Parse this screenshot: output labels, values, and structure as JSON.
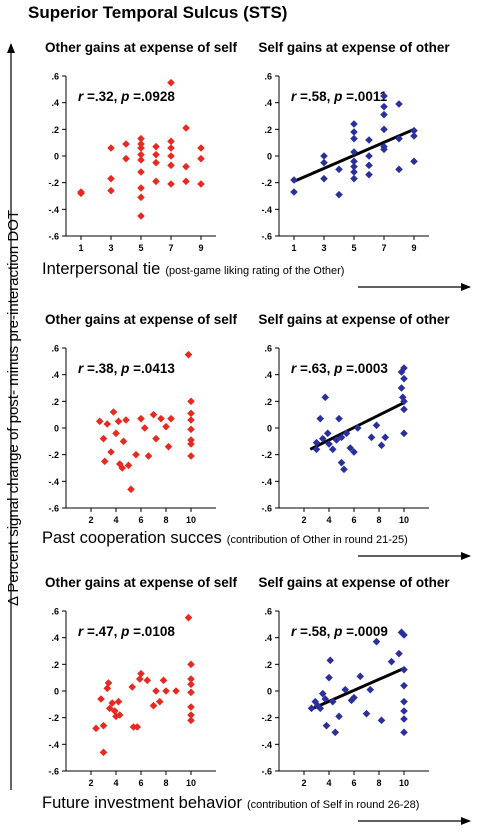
{
  "figure": {
    "title": "Superior Temporal Sulcus (STS)",
    "ylabel": "Δ Percent signal change of post- minus pre-interaction DOT",
    "colors": {
      "red": "#e8291f",
      "blue": "#2b2f9c",
      "axis": "#000000"
    }
  },
  "rows": [
    {
      "xlabel_main": "Interpersonal tie",
      "xlabel_note": "(post-game liking rating of the Other)"
    },
    {
      "xlabel_main": "Past cooperation succes",
      "xlabel_note": "(contribution of Other in round 21-25)"
    },
    {
      "xlabel_main": "Future investment behavior",
      "xlabel_note": "(contribution of Self in round 26-28)"
    }
  ],
  "chart_data": [
    {
      "type": "scatter",
      "title": "Other gains at expense of self",
      "stat_r": "r",
      "stat_rval": " =.32, ",
      "stat_p": "p",
      "stat_pval": " =.0928",
      "color": "#e8291f",
      "xlim": [
        0,
        10
      ],
      "ylim": [
        -0.6,
        0.6
      ],
      "xticks": [
        1,
        3,
        5,
        7,
        9
      ],
      "yticks": [
        -0.6,
        -0.4,
        -0.2,
        0,
        0.2,
        0.4,
        0.6
      ],
      "points": [
        [
          1,
          -0.27
        ],
        [
          1,
          -0.28
        ],
        [
          3,
          0.06
        ],
        [
          3,
          -0.17
        ],
        [
          3,
          -0.26
        ],
        [
          4,
          -0.02
        ],
        [
          4,
          0.09
        ],
        [
          5,
          0.13
        ],
        [
          5,
          0.09
        ],
        [
          5,
          0.06
        ],
        [
          5,
          0.01
        ],
        [
          5,
          -0.03
        ],
        [
          5,
          -0.12
        ],
        [
          5,
          -0.24
        ],
        [
          5,
          -0.31
        ],
        [
          5,
          -0.45
        ],
        [
          6,
          0.07
        ],
        [
          6,
          0.01
        ],
        [
          6,
          -0.05
        ],
        [
          6,
          -0.19
        ],
        [
          7,
          0.55
        ],
        [
          7,
          0.11
        ],
        [
          7,
          0.06
        ],
        [
          7,
          0.0
        ],
        [
          7,
          -0.07
        ],
        [
          7,
          -0.21
        ],
        [
          8,
          0.21
        ],
        [
          8,
          -0.08
        ],
        [
          8,
          -0.19
        ],
        [
          9,
          0.06
        ],
        [
          9,
          -0.02
        ],
        [
          9,
          -0.21
        ]
      ]
    },
    {
      "type": "scatter",
      "title": "Self gains at expense of other",
      "stat_r": "r",
      "stat_rval": " =.58, ",
      "stat_p": "p",
      "stat_pval": " =.0011",
      "color": "#2b2f9c",
      "xlim": [
        0,
        10
      ],
      "ylim": [
        -0.6,
        0.6
      ],
      "xticks": [
        1,
        3,
        5,
        7,
        9
      ],
      "yticks": [
        -0.6,
        -0.4,
        -0.2,
        0,
        0.2,
        0.4,
        0.6
      ],
      "fit": [
        [
          1,
          -0.19
        ],
        [
          9,
          0.2
        ]
      ],
      "points": [
        [
          1,
          -0.18
        ],
        [
          1,
          -0.27
        ],
        [
          3,
          0.0
        ],
        [
          3,
          -0.05
        ],
        [
          3,
          -0.17
        ],
        [
          4,
          -0.1
        ],
        [
          4,
          -0.29
        ],
        [
          5,
          0.24
        ],
        [
          5,
          0.18
        ],
        [
          5,
          0.13
        ],
        [
          5,
          0.03
        ],
        [
          5,
          -0.04
        ],
        [
          5,
          -0.08
        ],
        [
          5,
          -0.12
        ],
        [
          5,
          -0.17
        ],
        [
          6,
          0.12
        ],
        [
          6,
          0.0
        ],
        [
          6,
          -0.07
        ],
        [
          6,
          -0.14
        ],
        [
          7,
          0.45
        ],
        [
          7,
          0.37
        ],
        [
          7,
          0.31
        ],
        [
          7,
          0.2
        ],
        [
          7,
          0.07
        ],
        [
          7,
          0.05
        ],
        [
          8,
          0.39
        ],
        [
          8,
          0.13
        ],
        [
          8,
          -0.1
        ],
        [
          9,
          0.19
        ],
        [
          9,
          0.15
        ],
        [
          9,
          -0.04
        ]
      ]
    },
    {
      "type": "scatter",
      "title": "Other gains at expense of self",
      "stat_r": "r",
      "stat_rval": " =.38, ",
      "stat_p": "p",
      "stat_pval": " =.0413",
      "color": "#e8291f",
      "xlim": [
        0,
        12
      ],
      "ylim": [
        -0.6,
        0.6
      ],
      "xticks": [
        2,
        4,
        6,
        8,
        10
      ],
      "yticks": [
        -0.6,
        -0.4,
        -0.2,
        0,
        0.2,
        0.4,
        0.6
      ],
      "points": [
        [
          2.7,
          0.05
        ],
        [
          3,
          -0.08
        ],
        [
          3.1,
          -0.25
        ],
        [
          3.3,
          0.03
        ],
        [
          3.6,
          -0.18
        ],
        [
          3.8,
          0.12
        ],
        [
          4,
          -0.04
        ],
        [
          4.2,
          0.05
        ],
        [
          4.3,
          -0.27
        ],
        [
          4.5,
          -0.3
        ],
        [
          4.6,
          -0.1
        ],
        [
          4.8,
          0.06
        ],
        [
          5,
          -0.28
        ],
        [
          5.2,
          -0.46
        ],
        [
          5.6,
          -0.2
        ],
        [
          6,
          0.07
        ],
        [
          6.3,
          0.0
        ],
        [
          6.6,
          -0.21
        ],
        [
          7,
          0.1
        ],
        [
          7.2,
          -0.08
        ],
        [
          7.6,
          0.07
        ],
        [
          8,
          0.01
        ],
        [
          8.2,
          -0.14
        ],
        [
          8.4,
          0.07
        ],
        [
          9.8,
          0.55
        ],
        [
          10,
          0.2
        ],
        [
          10,
          0.11
        ],
        [
          10,
          0.06
        ],
        [
          10,
          -0.01
        ],
        [
          10,
          -0.09
        ],
        [
          10,
          -0.12
        ],
        [
          10,
          -0.21
        ]
      ]
    },
    {
      "type": "scatter",
      "title": "Self gains at expense of other",
      "stat_r": "r",
      "stat_rval": " =.63, ",
      "stat_p": "p",
      "stat_pval": " =.0003",
      "color": "#2b2f9c",
      "xlim": [
        0,
        12
      ],
      "ylim": [
        -0.6,
        0.6
      ],
      "xticks": [
        2,
        4,
        6,
        8,
        10
      ],
      "yticks": [
        -0.6,
        -0.4,
        -0.2,
        0,
        0.2,
        0.4,
        0.6
      ],
      "fit": [
        [
          2.5,
          -0.16
        ],
        [
          10,
          0.19
        ]
      ],
      "points": [
        [
          3,
          -0.16
        ],
        [
          3,
          -0.11
        ],
        [
          3.3,
          0.07
        ],
        [
          3.5,
          -0.08
        ],
        [
          3.7,
          0.23
        ],
        [
          3.9,
          -0.04
        ],
        [
          4,
          -0.12
        ],
        [
          4.3,
          -0.16
        ],
        [
          4.6,
          -0.09
        ],
        [
          4.8,
          0.07
        ],
        [
          5,
          -0.07
        ],
        [
          5,
          -0.26
        ],
        [
          5.2,
          -0.31
        ],
        [
          5.4,
          -0.04
        ],
        [
          5.7,
          -0.15
        ],
        [
          6,
          -0.18
        ],
        [
          6.3,
          0.0
        ],
        [
          7.4,
          -0.07
        ],
        [
          7.8,
          0.02
        ],
        [
          8.2,
          -0.13
        ],
        [
          8.5,
          -0.07
        ],
        [
          9.8,
          0.42
        ],
        [
          9.8,
          0.3
        ],
        [
          9.9,
          0.23
        ],
        [
          10,
          0.45
        ],
        [
          10,
          0.37
        ],
        [
          10,
          0.2
        ],
        [
          10,
          0.14
        ],
        [
          10,
          -0.04
        ]
      ]
    },
    {
      "type": "scatter",
      "title": "Other gains at expense of self",
      "stat_r": "r",
      "stat_rval": " =.47, ",
      "stat_p": "p",
      "stat_pval": " =.0108",
      "color": "#e8291f",
      "xlim": [
        0,
        12
      ],
      "ylim": [
        -0.6,
        0.6
      ],
      "xticks": [
        2,
        4,
        6,
        8,
        10
      ],
      "yticks": [
        -0.6,
        -0.4,
        -0.2,
        0,
        0.2,
        0.4,
        0.6
      ],
      "points": [
        [
          2.4,
          -0.28
        ],
        [
          2.8,
          -0.06
        ],
        [
          3,
          -0.46
        ],
        [
          3,
          -0.26
        ],
        [
          3.3,
          0.02
        ],
        [
          3.4,
          0.06
        ],
        [
          3.5,
          -0.13
        ],
        [
          3.7,
          -0.09
        ],
        [
          3.9,
          -0.15
        ],
        [
          4,
          -0.19
        ],
        [
          4.2,
          -0.08
        ],
        [
          4.3,
          -0.18
        ],
        [
          5.3,
          0.03
        ],
        [
          5.4,
          -0.27
        ],
        [
          5.7,
          -0.27
        ],
        [
          5.9,
          0.09
        ],
        [
          6,
          0.13
        ],
        [
          6.5,
          0.08
        ],
        [
          7,
          -0.11
        ],
        [
          7.2,
          0.0
        ],
        [
          7.5,
          -0.08
        ],
        [
          7.8,
          0.08
        ],
        [
          8,
          0.0
        ],
        [
          8.8,
          0.0
        ],
        [
          9.8,
          0.55
        ],
        [
          10,
          0.2
        ],
        [
          10,
          0.09
        ],
        [
          10,
          0.05
        ],
        [
          10,
          -0.01
        ],
        [
          10,
          -0.12
        ],
        [
          10,
          -0.18
        ],
        [
          10,
          -0.22
        ]
      ]
    },
    {
      "type": "scatter",
      "title": "Self gains at expense of other",
      "stat_r": "r",
      "stat_rval": " =.58, ",
      "stat_p": "p",
      "stat_pval": " =.0009",
      "color": "#2b2f9c",
      "xlim": [
        0,
        12
      ],
      "ylim": [
        -0.6,
        0.6
      ],
      "xticks": [
        2,
        4,
        6,
        8,
        10
      ],
      "yticks": [
        -0.6,
        -0.4,
        -0.2,
        0,
        0.2,
        0.4,
        0.6
      ],
      "fit": [
        [
          2.5,
          -0.14
        ],
        [
          10,
          0.17
        ]
      ],
      "points": [
        [
          2.6,
          -0.13
        ],
        [
          2.9,
          -0.08
        ],
        [
          3.1,
          -0.11
        ],
        [
          3.3,
          -0.13
        ],
        [
          3.5,
          -0.02
        ],
        [
          3.7,
          -0.06
        ],
        [
          3.8,
          -0.26
        ],
        [
          4,
          0.1
        ],
        [
          4.1,
          0.23
        ],
        [
          4.3,
          -0.08
        ],
        [
          4.5,
          -0.31
        ],
        [
          4.8,
          -0.19
        ],
        [
          5.3,
          0.01
        ],
        [
          5.8,
          -0.07
        ],
        [
          6,
          -0.05
        ],
        [
          6.5,
          0.11
        ],
        [
          7,
          -0.17
        ],
        [
          7.3,
          0.01
        ],
        [
          7.8,
          0.37
        ],
        [
          8.2,
          -0.22
        ],
        [
          9,
          0.22
        ],
        [
          9.6,
          0.28
        ],
        [
          9.8,
          0.44
        ],
        [
          10,
          0.42
        ],
        [
          10,
          0.16
        ],
        [
          10,
          0.04
        ],
        [
          10,
          -0.08
        ],
        [
          10,
          -0.15
        ],
        [
          10,
          -0.21
        ],
        [
          10,
          -0.31
        ]
      ]
    }
  ]
}
